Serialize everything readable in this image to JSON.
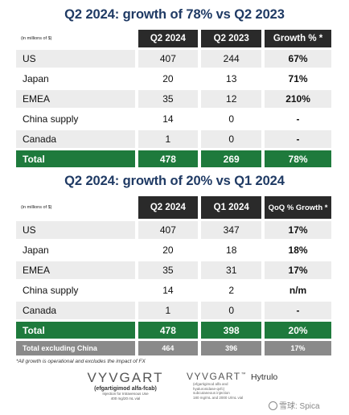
{
  "table1": {
    "title": "Q2 2024: growth of 78% vs Q2 2023",
    "unit_note": "(in millions of $)",
    "headers": [
      "Q2 2024",
      "Q2 2023",
      "Growth % *"
    ],
    "rows": [
      {
        "label": "US",
        "v1": "407",
        "v2": "244",
        "v3": "67%"
      },
      {
        "label": "Japan",
        "v1": "20",
        "v2": "13",
        "v3": "71%"
      },
      {
        "label": "EMEA",
        "v1": "35",
        "v2": "12",
        "v3": "210%"
      },
      {
        "label": "China supply",
        "v1": "14",
        "v2": "0",
        "v3": "-"
      },
      {
        "label": "Canada",
        "v1": "1",
        "v2": "0",
        "v3": "-"
      }
    ],
    "total": {
      "label": "Total",
      "v1": "478",
      "v2": "269",
      "v3": "78%"
    }
  },
  "table2": {
    "title": "Q2 2024: growth of 20% vs Q1 2024",
    "unit_note": "(in millions of $)",
    "headers": [
      "Q2 2024",
      "Q1 2024",
      "QoQ % Growth *"
    ],
    "rows": [
      {
        "label": "US",
        "v1": "407",
        "v2": "347",
        "v3": "17%"
      },
      {
        "label": "Japan",
        "v1": "20",
        "v2": "18",
        "v3": "18%"
      },
      {
        "label": "EMEA",
        "v1": "35",
        "v2": "31",
        "v3": "17%"
      },
      {
        "label": "China supply",
        "v1": "14",
        "v2": "2",
        "v3": "n/m"
      },
      {
        "label": "Canada",
        "v1": "1",
        "v2": "0",
        "v3": "-"
      }
    ],
    "total": {
      "label": "Total",
      "v1": "478",
      "v2": "398",
      "v3": "20%"
    },
    "total_excl": {
      "label": "Total excluding China",
      "v1": "464",
      "v2": "396",
      "v3": "17%"
    }
  },
  "footnote": "*All growth is operational and excludes the impact of FX",
  "logo_vyvgart": {
    "brand": "VYVGART",
    "generic": "(efgartigimod alfa-fcab)",
    "line1": "Injection for Intravenous Use",
    "line2": "400 mg/20 mL vial"
  },
  "logo_hytrulo": {
    "brand": "VYVGART",
    "suffix": "Hytrulo",
    "generic1": "(efgartigimod alfa and",
    "generic2": "hyaluronidase-qvfc)",
    "line1": "subcutaneous injection",
    "line2": "180 mg/mL and 2000 U/mL vial"
  },
  "watermark": "雪球: Spica"
}
